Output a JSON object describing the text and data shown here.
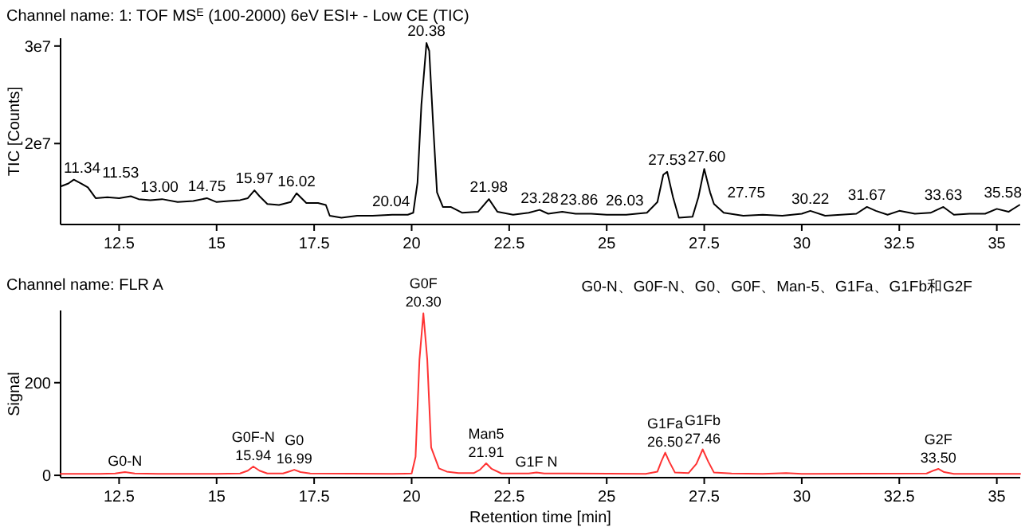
{
  "chart_data": [
    {
      "type": "line",
      "title": "Channel name: 1: TOF MS$^{E}$ (100-2000) 6eV ESI+ - Low CE (TIC)",
      "ylabel": "TIC [Counts]",
      "xlim": [
        11,
        35.6
      ],
      "ylim": [
        11700000,
        30800000
      ],
      "xticks": [
        12.5,
        15,
        17.5,
        20,
        22.5,
        25,
        27.5,
        30,
        32.5,
        35
      ],
      "yticks": [
        {
          "value": 20000000,
          "label": "2e7"
        },
        {
          "value": 30000000,
          "label": "3e7"
        }
      ],
      "x": [
        11.0,
        11.2,
        11.34,
        11.53,
        11.7,
        11.9,
        12.2,
        12.5,
        12.8,
        13.0,
        13.3,
        13.6,
        14.0,
        14.4,
        14.75,
        15.0,
        15.3,
        15.6,
        15.8,
        15.97,
        16.1,
        16.3,
        16.6,
        16.9,
        17.05,
        17.3,
        17.6,
        17.8,
        17.9,
        18.2,
        18.6,
        19.0,
        19.5,
        19.9,
        20.04,
        20.15,
        20.25,
        20.38,
        20.45,
        20.55,
        20.65,
        20.8,
        21.0,
        21.3,
        21.7,
        21.98,
        22.2,
        22.6,
        23.0,
        23.28,
        23.5,
        23.86,
        24.2,
        24.6,
        25.0,
        25.5,
        26.03,
        26.3,
        26.45,
        26.55,
        26.7,
        26.85,
        27.2,
        27.35,
        27.5,
        27.65,
        27.75,
        28.0,
        28.5,
        29.0,
        29.5,
        30.0,
        30.22,
        30.6,
        31.0,
        31.4,
        31.67,
        31.9,
        32.2,
        32.5,
        32.9,
        33.3,
        33.63,
        33.9,
        34.3,
        34.7,
        35.0,
        35.3,
        35.58
      ],
      "series": [
        {
          "color": "#000000",
          "values": [
            15600000,
            15900000,
            16300000,
            15900000,
            15500000,
            14400000,
            14500000,
            14400000,
            14600000,
            14300000,
            14200000,
            14300000,
            14000000,
            14100000,
            14400000,
            14000000,
            14100000,
            14200000,
            14400000,
            15200000,
            14600000,
            13800000,
            13700000,
            14000000,
            14900000,
            13900000,
            13900000,
            13700000,
            12600000,
            12400000,
            12600000,
            12600000,
            12700000,
            12700000,
            12900000,
            16000000,
            24000000,
            30300000,
            29500000,
            22000000,
            15000000,
            13500000,
            13500000,
            12900000,
            13000000,
            14300000,
            13000000,
            12700000,
            12900000,
            13200000,
            12800000,
            13000000,
            12800000,
            12800000,
            12700000,
            12700000,
            12900000,
            14000000,
            16800000,
            17100000,
            14500000,
            12400000,
            12500000,
            14500000,
            17400000,
            15000000,
            13800000,
            12900000,
            12600000,
            12700000,
            12600000,
            12800000,
            13100000,
            12600000,
            12700000,
            12800000,
            13500000,
            13100000,
            12700000,
            13100000,
            12800000,
            12900000,
            13500000,
            12700000,
            12800000,
            12800000,
            13300000,
            13000000,
            13700000
          ]
        }
      ],
      "annotations": [
        {
          "text": "11.34",
          "x": 11.34,
          "y": 16300000
        },
        {
          "text": "11.53",
          "x": 11.53,
          "y": 15900000
        },
        {
          "text": "13.00",
          "x": 13.0,
          "y": 14300000
        },
        {
          "text": "14.75",
          "x": 14.75,
          "y": 14400000
        },
        {
          "text": "15.97",
          "x": 15.97,
          "y": 15200000
        },
        {
          "text": "16.02",
          "x": 17.05,
          "y": 14900000
        },
        {
          "text": "20.04",
          "x": 20.04,
          "y": 12900000
        },
        {
          "text": "20.38",
          "x": 20.38,
          "y": 30300000
        },
        {
          "text": "21.98",
          "x": 21.98,
          "y": 14300000
        },
        {
          "text": "23.28",
          "x": 23.28,
          "y": 13200000
        },
        {
          "text": "23.86",
          "x": 23.86,
          "y": 13000000
        },
        {
          "text": "26.03",
          "x": 26.03,
          "y": 12900000
        },
        {
          "text": "27.53",
          "x": 26.55,
          "y": 17100000
        },
        {
          "text": "27.60",
          "x": 27.5,
          "y": 17400000
        },
        {
          "text": "27.75",
          "x": 27.75,
          "y": 13800000
        },
        {
          "text": "30.22",
          "x": 30.22,
          "y": 13100000
        },
        {
          "text": "31.67",
          "x": 31.67,
          "y": 13500000
        },
        {
          "text": "33.63",
          "x": 33.63,
          "y": 13500000
        },
        {
          "text": "35.58",
          "x": 35.58,
          "y": 13700000
        }
      ]
    },
    {
      "type": "line",
      "title": "Channel name: FLR A",
      "ylabel": "Signal",
      "xlabel": "Retention time [min]",
      "xlim": [
        11,
        35.6
      ],
      "ylim": [
        -5,
        356
      ],
      "xticks": [
        12.5,
        15,
        17.5,
        20,
        22.5,
        25,
        27.5,
        30,
        32.5,
        35
      ],
      "yticks": [
        0,
        200
      ],
      "x": [
        11.0,
        12.0,
        12.4,
        12.65,
        12.9,
        13.5,
        15.0,
        15.6,
        15.8,
        15.94,
        16.1,
        16.3,
        16.7,
        16.85,
        16.99,
        17.15,
        17.4,
        19.5,
        20.0,
        20.1,
        20.2,
        20.3,
        20.4,
        20.5,
        20.7,
        20.9,
        21.2,
        21.6,
        21.75,
        21.91,
        22.05,
        22.3,
        23.0,
        23.2,
        23.4,
        24.0,
        26.0,
        26.3,
        26.4,
        26.5,
        26.6,
        26.75,
        27.1,
        27.3,
        27.46,
        27.6,
        27.75,
        28.2,
        29.0,
        29.6,
        30.0,
        33.2,
        33.4,
        33.5,
        33.65,
        33.9,
        35.6
      ],
      "series": [
        {
          "color": "#ff3333",
          "values": [
            3,
            3,
            4,
            7,
            4,
            3,
            3,
            4,
            10,
            19,
            10,
            4,
            4,
            8,
            12,
            7,
            4,
            3,
            4,
            40,
            250,
            350,
            250,
            60,
            15,
            8,
            5,
            5,
            12,
            26,
            14,
            4,
            4,
            6,
            4,
            4,
            3,
            8,
            30,
            49,
            30,
            6,
            5,
            25,
            56,
            30,
            6,
            4,
            3,
            5,
            3,
            4,
            11,
            14,
            7,
            3,
            3
          ]
        }
      ],
      "annotations": [
        {
          "text": "G0-N",
          "x": 12.65,
          "y": 7
        },
        {
          "text": "15.94",
          "x": 15.94,
          "y": 19
        },
        {
          "text": "G0F-N",
          "x": 15.94,
          "y": 19
        },
        {
          "text": "16.99",
          "x": 16.99,
          "y": 12
        },
        {
          "text": "G0",
          "x": 16.99,
          "y": 12
        },
        {
          "text": "20.30",
          "x": 20.3,
          "y": 350
        },
        {
          "text": "G0F",
          "x": 20.3,
          "y": 350
        },
        {
          "text": "21.91",
          "x": 21.91,
          "y": 26
        },
        {
          "text": "Man5",
          "x": 21.91,
          "y": 26
        },
        {
          "text": "G1F N",
          "x": 23.2,
          "y": 6
        },
        {
          "text": "26.50",
          "x": 26.5,
          "y": 49
        },
        {
          "text": "G1Fa",
          "x": 26.5,
          "y": 49
        },
        {
          "text": "27.46",
          "x": 27.46,
          "y": 56
        },
        {
          "text": "G1Fb",
          "x": 27.46,
          "y": 56
        },
        {
          "text": "33.50",
          "x": 33.5,
          "y": 14
        },
        {
          "text": "G2F",
          "x": 33.5,
          "y": 14
        },
        "G0-N、G0F-N、G0、G0F、Man-5、G1Fa、G1Fb和G2F"
      ]
    }
  ]
}
